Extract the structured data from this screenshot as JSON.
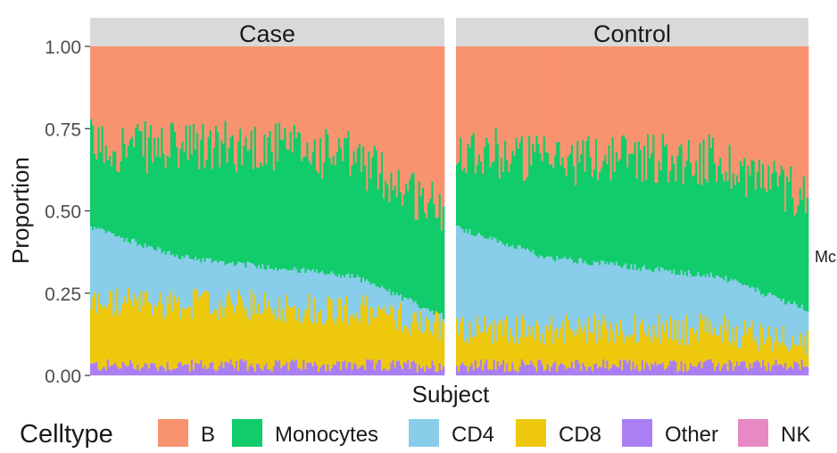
{
  "chart_data": {
    "type": "bar",
    "stacked": true,
    "xlabel": "Subject",
    "ylabel": "Proportion",
    "ylim": [
      0,
      1
    ],
    "y_ticks": [
      0,
      0.25,
      0.5,
      0.75,
      1.0
    ],
    "y_tick_labels": [
      "0.00",
      "0.25",
      "0.50",
      "0.75",
      "1.00"
    ],
    "x_tick_labels": "none",
    "grid": false,
    "legend": {
      "position": "bottom",
      "title": "Celltype",
      "entries": [
        "B",
        "Monocytes",
        "CD4",
        "CD8",
        "Other",
        "NK"
      ]
    },
    "stack_order_bottom_to_top": [
      "Other",
      "CD8",
      "CD4",
      "Monocytes",
      "B"
    ],
    "colors": {
      "B": "#F8936F",
      "Monocytes": "#10CC6A",
      "CD4": "#88CDEA",
      "CD8": "#EEC80C",
      "Other": "#A97FF3",
      "NK": "#E78AC3",
      "strip": "#D9D9D9"
    },
    "edge_label": "Mc",
    "panels": [
      {
        "name": "Case",
        "n_subjects": 190,
        "note": "approximate profile read at evenly spaced subjects; subjects sorted by decreasing CD4 top",
        "profile": {
          "position": [
            0,
            0.25,
            0.5,
            0.75,
            1.0
          ],
          "Other_top": [
            0.03,
            0.03,
            0.03,
            0.03,
            0.03
          ],
          "CD8_top": [
            0.22,
            0.22,
            0.21,
            0.2,
            0.15
          ],
          "CD4_top": [
            0.45,
            0.36,
            0.33,
            0.3,
            0.18
          ],
          "Monocytes_top": [
            0.7,
            0.69,
            0.7,
            0.66,
            0.5
          ],
          "B_top": [
            1.0,
            1.0,
            1.0,
            1.0,
            1.0
          ]
        }
      },
      {
        "name": "Control",
        "n_subjects": 190,
        "note": "approximate profile read at evenly spaced subjects; subjects sorted by decreasing CD4 top",
        "profile": {
          "position": [
            0,
            0.25,
            0.5,
            0.75,
            1.0
          ],
          "Other_top": [
            0.03,
            0.03,
            0.03,
            0.03,
            0.03
          ],
          "CD8_top": [
            0.14,
            0.14,
            0.14,
            0.14,
            0.1
          ],
          "CD4_top": [
            0.45,
            0.36,
            0.33,
            0.3,
            0.2
          ],
          "Monocytes_top": [
            0.7,
            0.65,
            0.67,
            0.65,
            0.55
          ],
          "B_top": [
            1.0,
            1.0,
            1.0,
            1.0,
            1.0
          ]
        }
      }
    ]
  }
}
